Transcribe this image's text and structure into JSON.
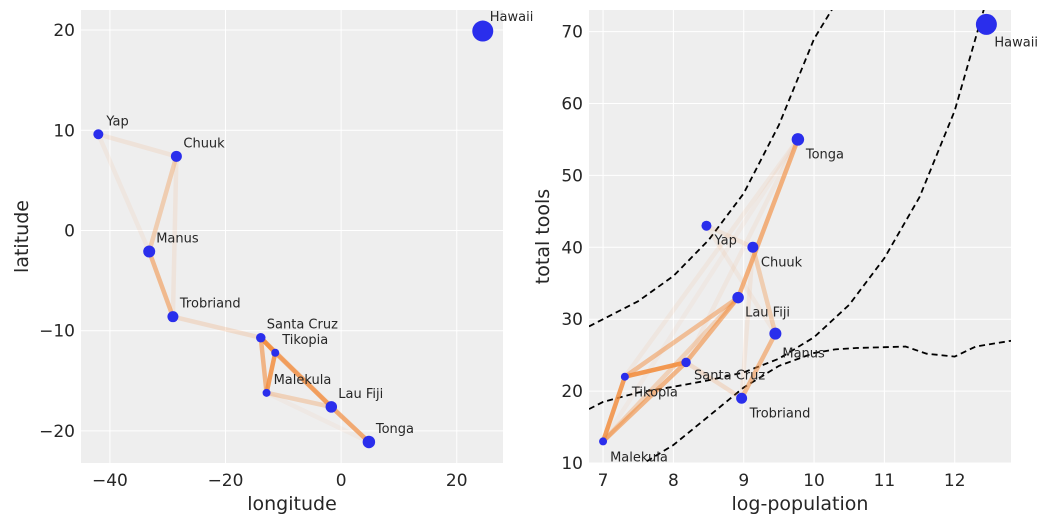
{
  "chart_data": [
    {
      "type": "scatter",
      "title": "",
      "xlabel": "longitude",
      "ylabel": "latitude",
      "xlim": [
        -45,
        28
      ],
      "ylim": [
        -23.2,
        22
      ],
      "xticks": [
        -40,
        -20,
        0,
        20
      ],
      "yticks": [
        -20,
        -10,
        0,
        10,
        20
      ],
      "xtick_labels": [
        "−40",
        "−20",
        "0",
        "20"
      ],
      "ytick_labels": [
        "−20",
        "−10",
        "0",
        "10",
        "20"
      ],
      "grid": true,
      "background": "#eeeeee",
      "points": [
        {
          "name": "Malekula",
          "x": -12.9,
          "y": -16.2,
          "size": 8
        },
        {
          "name": "Tikopia",
          "x": -11.4,
          "y": -12.2,
          "size": 8
        },
        {
          "name": "Santa Cruz",
          "x": -13.9,
          "y": -10.7,
          "size": 9.5
        },
        {
          "name": "Yap",
          "x": -42.0,
          "y": 9.6,
          "size": 10
        },
        {
          "name": "Lau Fiji",
          "x": -1.7,
          "y": -17.6,
          "size": 11.5
        },
        {
          "name": "Trobriand",
          "x": -29.1,
          "y": -8.6,
          "size": 11
        },
        {
          "name": "Chuuk",
          "x": -28.5,
          "y": 7.4,
          "size": 11
        },
        {
          "name": "Manus",
          "x": -33.2,
          "y": -2.1,
          "size": 12
        },
        {
          "name": "Tonga",
          "x": 4.8,
          "y": -21.1,
          "size": 12.5
        },
        {
          "name": "Hawaii",
          "x": 24.5,
          "y": 19.9,
          "size": 21
        }
      ]
    },
    {
      "type": "scatter",
      "title": "",
      "xlabel": "log-population",
      "ylabel": "total tools",
      "xlim": [
        6.8,
        12.8
      ],
      "ylim": [
        10,
        73
      ],
      "xticks": [
        7,
        8,
        9,
        10,
        11,
        12
      ],
      "yticks": [
        10,
        20,
        30,
        40,
        50,
        60,
        70
      ],
      "xtick_labels": [
        "7",
        "8",
        "9",
        "10",
        "11",
        "12"
      ],
      "ytick_labels": [
        "10",
        "20",
        "30",
        "40",
        "50",
        "60",
        "70"
      ],
      "grid": true,
      "background": "#eeeeee",
      "points": [
        {
          "name": "Malekula",
          "x": 7.0,
          "y": 13,
          "size": 8
        },
        {
          "name": "Tikopia",
          "x": 7.31,
          "y": 22,
          "size": 8
        },
        {
          "name": "Santa Cruz",
          "x": 8.18,
          "y": 24,
          "size": 9.5
        },
        {
          "name": "Yap",
          "x": 8.47,
          "y": 43,
          "size": 10
        },
        {
          "name": "Lau Fiji",
          "x": 8.92,
          "y": 33,
          "size": 11.5
        },
        {
          "name": "Trobriand",
          "x": 8.97,
          "y": 19,
          "size": 11
        },
        {
          "name": "Chuuk",
          "x": 9.13,
          "y": 40,
          "size": 11
        },
        {
          "name": "Manus",
          "x": 9.45,
          "y": 28,
          "size": 12
        },
        {
          "name": "Tonga",
          "x": 9.77,
          "y": 55,
          "size": 12.5
        },
        {
          "name": "Hawaii",
          "x": 12.45,
          "y": 71,
          "size": 21
        }
      ],
      "dashed_curves": [
        {
          "x": [
            6.8,
            7.0,
            7.5,
            8.0,
            8.5,
            9.0,
            9.5,
            10.0,
            10.5
          ],
          "y": [
            29,
            30,
            32.5,
            36,
            41,
            47.5,
            57,
            69,
            77
          ]
        },
        {
          "x": [
            6.8,
            7.0,
            7.5,
            8.0,
            8.5,
            9.0,
            9.5,
            10.0,
            10.5,
            11.0,
            11.5,
            12.0,
            12.5
          ],
          "y": [
            17.5,
            18.5,
            19.8,
            20.6,
            21.5,
            22.6,
            24.5,
            27.5,
            32,
            38.5,
            47,
            59,
            76
          ]
        },
        {
          "x": [
            7.5,
            8.0,
            8.5,
            9.0,
            9.5,
            10.0,
            10.3,
            10.6,
            11.0,
            11.3,
            11.6,
            12.0,
            12.3,
            12.8
          ],
          "y": [
            9.5,
            12.5,
            16.5,
            20.5,
            23.5,
            25.3,
            25.8,
            26.0,
            26.1,
            26.2,
            25.2,
            24.8,
            26.2,
            27.0
          ]
        }
      ]
    }
  ],
  "edges": [
    {
      "a": "Malekula",
      "b": "Tikopia",
      "w": 0.85
    },
    {
      "a": "Malekula",
      "b": "Santa Cruz",
      "w": 0.6
    },
    {
      "a": "Tikopia",
      "b": "Santa Cruz",
      "w": 0.9
    },
    {
      "a": "Santa Cruz",
      "b": "Lau Fiji",
      "w": 0.6
    },
    {
      "a": "Tikopia",
      "b": "Lau Fiji",
      "w": 0.5
    },
    {
      "a": "Malekula",
      "b": "Lau Fiji",
      "w": 0.3
    },
    {
      "a": "Lau Fiji",
      "b": "Tonga",
      "w": 0.65
    },
    {
      "a": "Santa Cruz",
      "b": "Trobriand",
      "w": 0.2
    },
    {
      "a": "Trobriand",
      "b": "Manus",
      "w": 0.55
    },
    {
      "a": "Manus",
      "b": "Chuuk",
      "w": 0.35
    },
    {
      "a": "Chuuk",
      "b": "Yap",
      "w": 0.12
    },
    {
      "a": "Manus",
      "b": "Yap",
      "w": 0.08
    },
    {
      "a": "Trobriand",
      "b": "Chuuk",
      "w": 0.1
    },
    {
      "a": "Santa Cruz",
      "b": "Tonga",
      "w": 0.08
    },
    {
      "a": "Tikopia",
      "b": "Tonga",
      "w": 0.08
    },
    {
      "a": "Malekula",
      "b": "Tonga",
      "w": 0.06
    }
  ],
  "colors": {
    "point": "#2a2eec",
    "edge": "#f28e3f",
    "curve": "#000000",
    "grid": "#ffffff",
    "axes_bg": "#eeeeee"
  }
}
